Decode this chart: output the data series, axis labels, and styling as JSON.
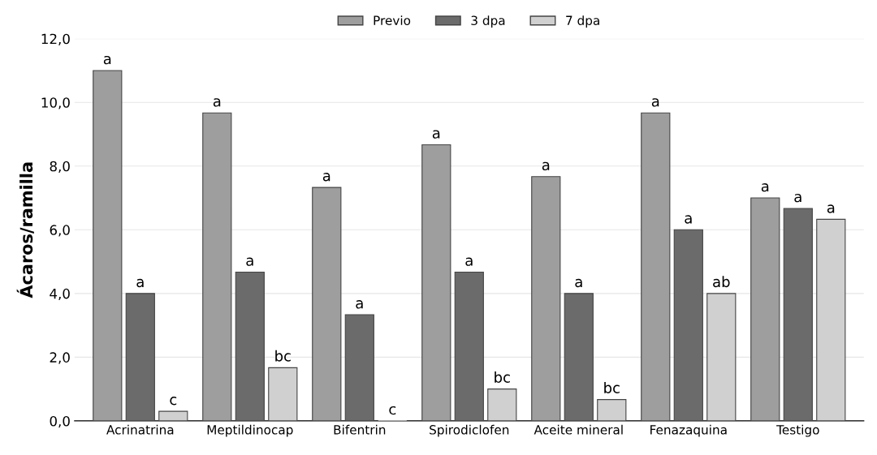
{
  "chart_data": {
    "type": "bar",
    "ylabel": "Ácaros/ramilla",
    "categories": [
      "Acrinatrina",
      "Meptildinocap",
      "Bifentrin",
      "Spirodiclofen",
      "Aceite mineral",
      "Fenazaquina",
      "Testigo"
    ],
    "series": [
      {
        "name": "Previo",
        "color": "#9e9e9e",
        "values": [
          11.0,
          9.67,
          7.33,
          8.67,
          7.67,
          9.67,
          7.0
        ],
        "value_labels": [
          "a",
          "a",
          "a",
          "a",
          "a",
          "a",
          "a"
        ]
      },
      {
        "name": "3 dpa",
        "color": "#6b6b6b",
        "values": [
          4.0,
          4.67,
          3.33,
          4.67,
          4.0,
          6.0,
          6.67
        ],
        "value_labels": [
          "a",
          "a",
          "a",
          "a",
          "a",
          "a",
          "a"
        ]
      },
      {
        "name": "7 dpa",
        "color": "#d0d0d0",
        "values": [
          0.3,
          1.67,
          0.0,
          1.0,
          0.67,
          4.0,
          6.33
        ],
        "value_labels": [
          "c",
          "bc",
          "c",
          "bc",
          "bc",
          "ab",
          "a"
        ]
      }
    ],
    "ylim": [
      0,
      12
    ],
    "yticks": [
      {
        "value": 0,
        "label": "0,0"
      },
      {
        "value": 2,
        "label": "2,0"
      },
      {
        "value": 4,
        "label": "4,0"
      },
      {
        "value": 6,
        "label": "6,0"
      },
      {
        "value": 8,
        "label": "8,0"
      },
      {
        "value": 10,
        "label": "10,0"
      },
      {
        "value": 12,
        "label": "12,0"
      }
    ],
    "grid": "y",
    "legend": "top"
  }
}
